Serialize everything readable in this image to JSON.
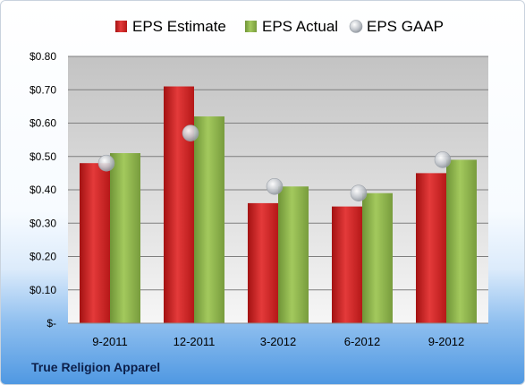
{
  "chart_data": {
    "type": "bar",
    "title": "",
    "xlabel": "",
    "ylabel": "",
    "categories": [
      "9-2011",
      "12-2011",
      "3-2012",
      "6-2012",
      "9-2012"
    ],
    "series": [
      {
        "name": "EPS Estimate",
        "kind": "bar",
        "color": "#cc1f1f",
        "values": [
          0.48,
          0.71,
          0.36,
          0.35,
          0.45
        ]
      },
      {
        "name": "EPS Actual",
        "kind": "bar",
        "color": "#8cb44a",
        "values": [
          0.51,
          0.62,
          0.41,
          0.39,
          0.49
        ]
      },
      {
        "name": "EPS GAAP",
        "kind": "scatter",
        "color": "#c8ccd2",
        "values": [
          0.48,
          0.57,
          0.41,
          0.39,
          0.49
        ]
      }
    ],
    "ylim": [
      0,
      0.8
    ],
    "yticks": [
      {
        "value": 0.8,
        "label": "$0.80"
      },
      {
        "value": 0.7,
        "label": "$0.70"
      },
      {
        "value": 0.6,
        "label": "$0.60"
      },
      {
        "value": 0.5,
        "label": "$0.50"
      },
      {
        "value": 0.4,
        "label": "$0.40"
      },
      {
        "value": 0.3,
        "label": "$0.30"
      },
      {
        "value": 0.2,
        "label": "$0.20"
      },
      {
        "value": 0.1,
        "label": "$0.10"
      },
      {
        "value": 0.0,
        "label": "$-"
      }
    ],
    "grid": true,
    "legend_position": "top"
  },
  "footer": {
    "company": "True Religion Apparel"
  },
  "colors": {
    "plot_top": "#c8c8c8",
    "plot_bottom": "#f4f4f4",
    "gridline": "#7f7f7f",
    "footer_text": "#0c1f4a"
  }
}
